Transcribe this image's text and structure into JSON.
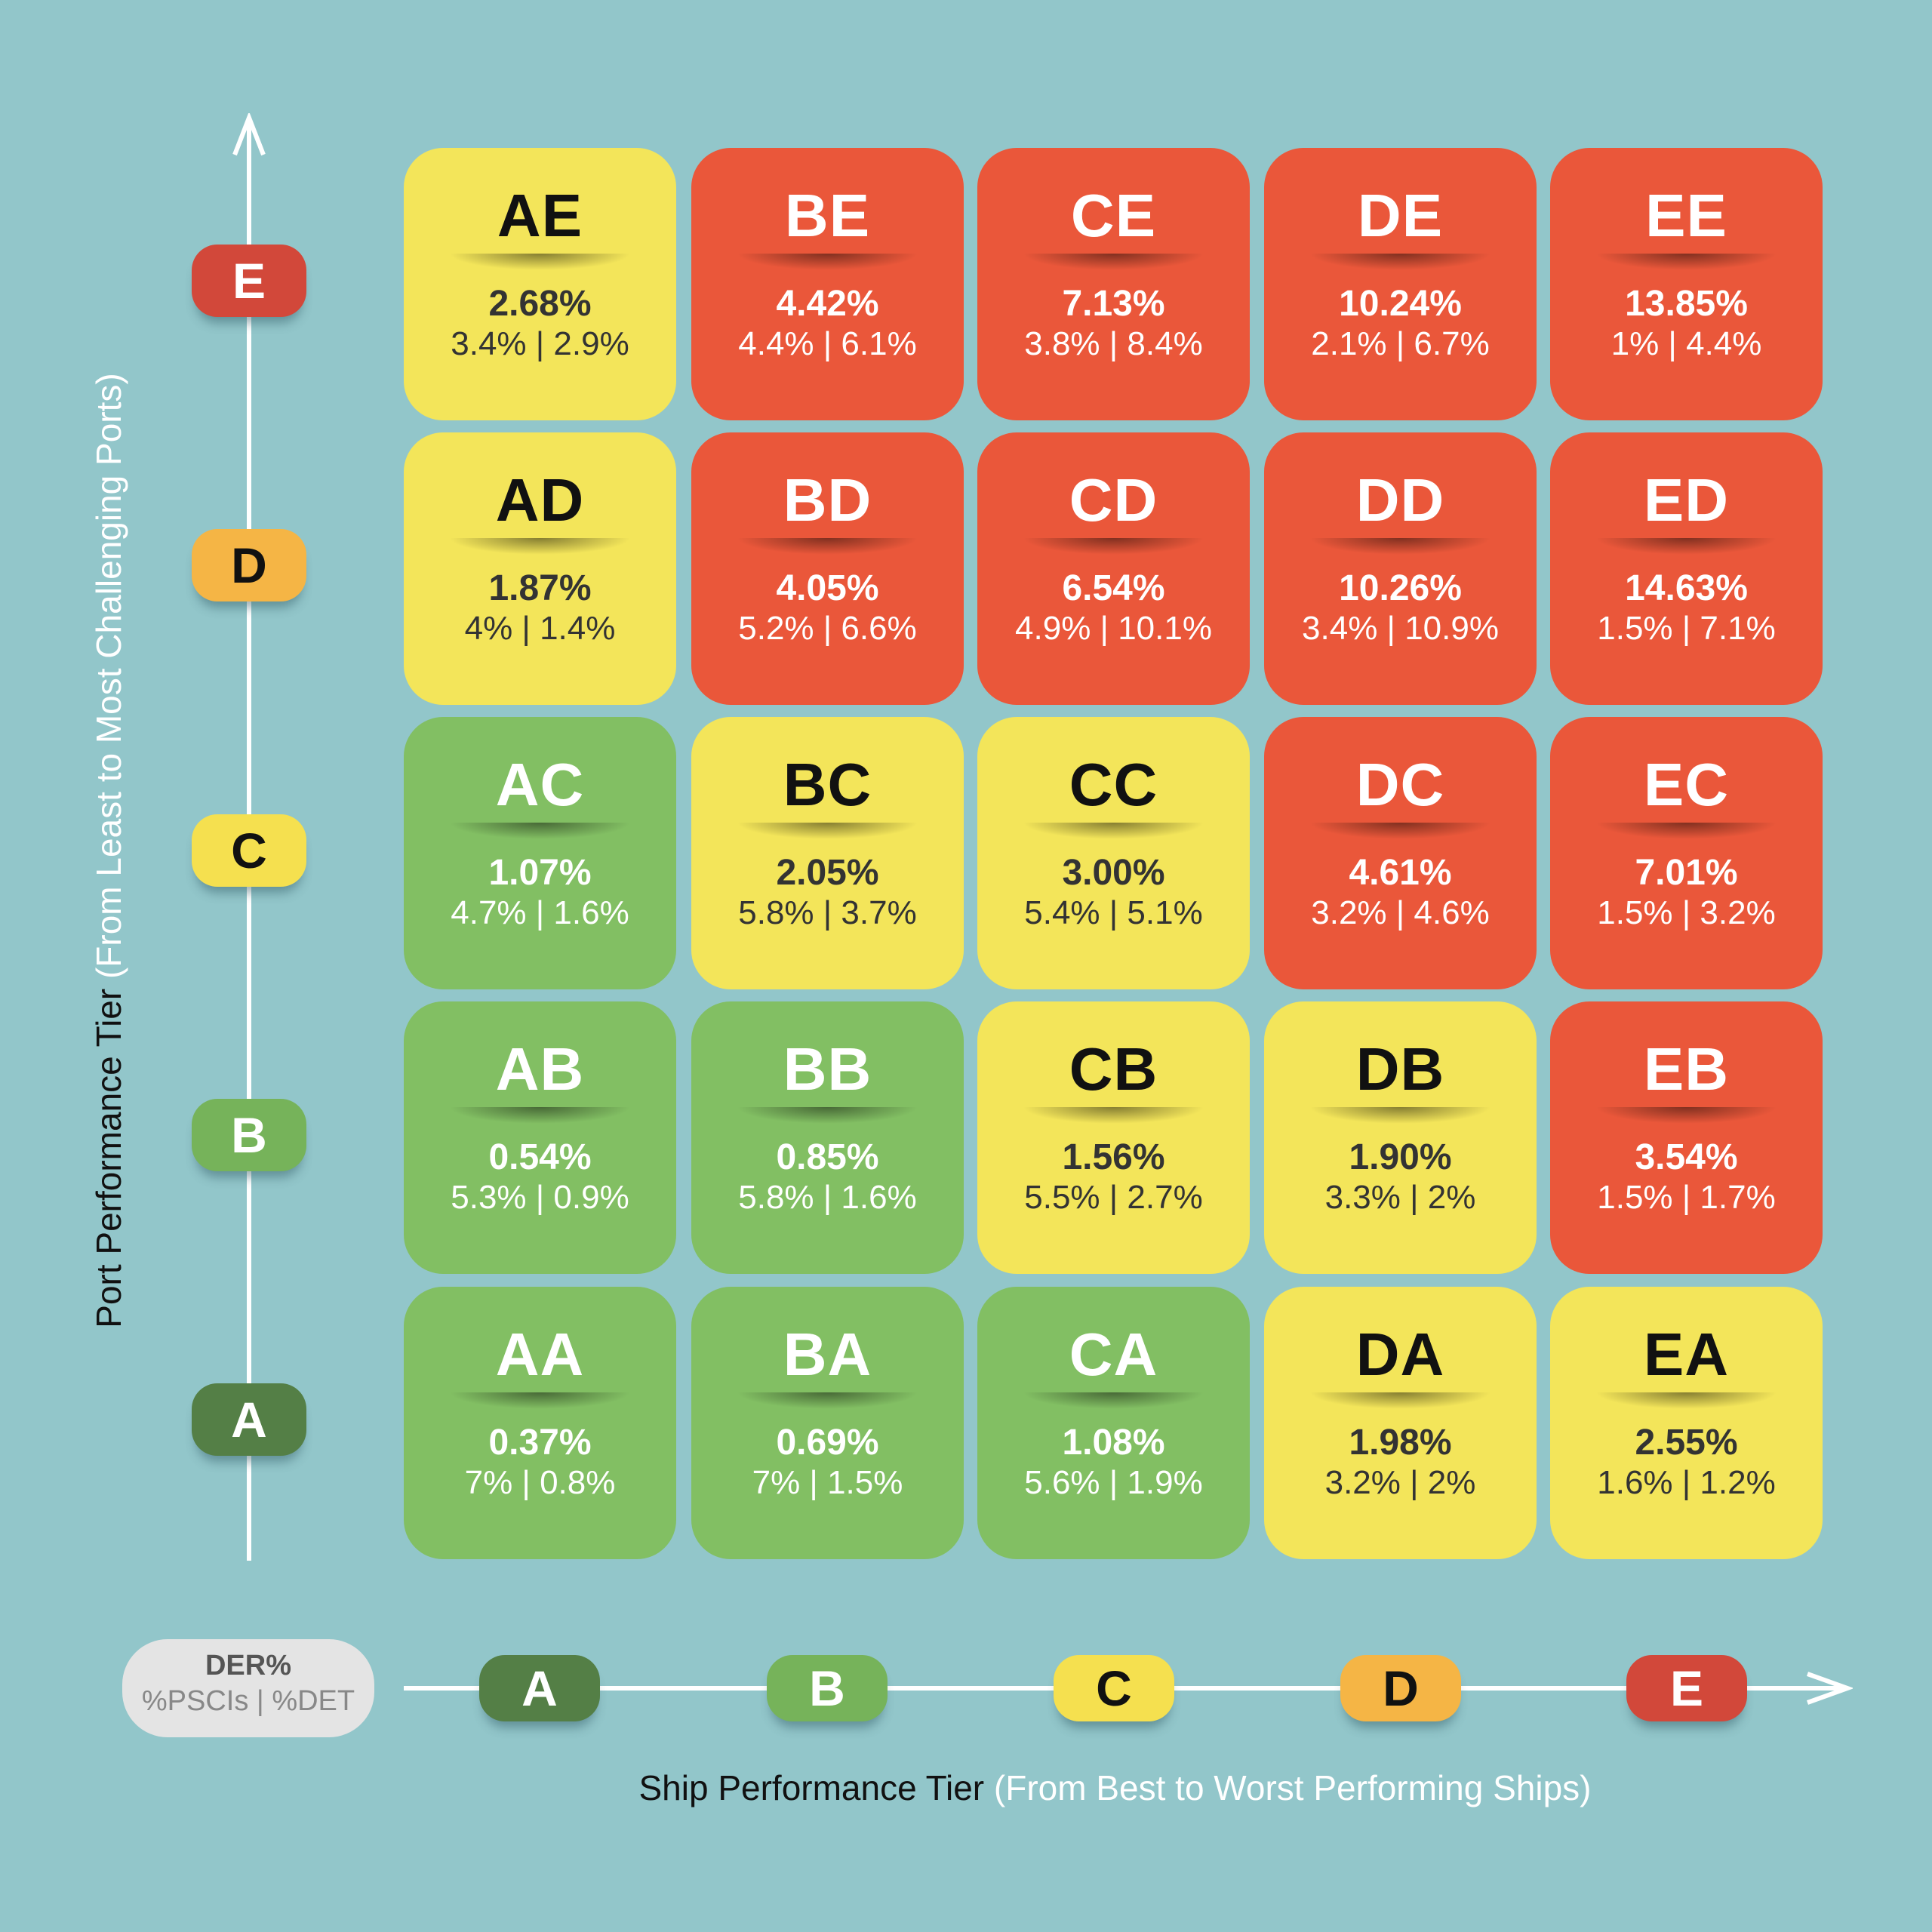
{
  "chart_data": {
    "type": "heatmap",
    "xlabel": "Ship Performance Tier",
    "xlabel_note": "(From Best to Worst Performing Ships)",
    "ylabel": "Port Performance Tier",
    "ylabel_note": "(From Least to Most Challenging Ports)",
    "x_categories": [
      "A",
      "B",
      "C",
      "D",
      "E"
    ],
    "y_categories": [
      "A",
      "B",
      "C",
      "D",
      "E"
    ],
    "legend": {
      "line1": "DER%",
      "line2": "%PSCIs | %DET"
    },
    "colors": {
      "background": "#92c6ca",
      "green": "#82bf63",
      "yellow": "#f3e55a",
      "red": "#ea573a"
    },
    "tier_colors": {
      "A": "#547f46",
      "B": "#76b35a",
      "C": "#f5e04f",
      "D": "#f5b545",
      "E": "#d2483a"
    },
    "rows": [
      {
        "port_tier": "E",
        "cells": [
          {
            "code": "AE",
            "der": "2.68%",
            "pscis": "3.4%",
            "det": "2.9%",
            "sub": "3.4% | 2.9%",
            "color": "yellow"
          },
          {
            "code": "BE",
            "der": "4.42%",
            "pscis": "4.4%",
            "det": "6.1%",
            "sub": "4.4% | 6.1%",
            "color": "red"
          },
          {
            "code": "CE",
            "der": "7.13%",
            "pscis": "3.8%",
            "det": "8.4%",
            "sub": "3.8% | 8.4%",
            "color": "red"
          },
          {
            "code": "DE",
            "der": "10.24%",
            "pscis": "2.1%",
            "det": "6.7%",
            "sub": "2.1% | 6.7%",
            "color": "red"
          },
          {
            "code": "EE",
            "der": "13.85%",
            "pscis": "1%",
            "det": "4.4%",
            "sub": "1% | 4.4%",
            "color": "red"
          }
        ]
      },
      {
        "port_tier": "D",
        "cells": [
          {
            "code": "AD",
            "der": "1.87%",
            "pscis": "4%",
            "det": "1.4%",
            "sub": "4% | 1.4%",
            "color": "yellow"
          },
          {
            "code": "BD",
            "der": "4.05%",
            "pscis": "5.2%",
            "det": "6.6%",
            "sub": "5.2% | 6.6%",
            "color": "red"
          },
          {
            "code": "CD",
            "der": "6.54%",
            "pscis": "4.9%",
            "det": "10.1%",
            "sub": "4.9% | 10.1%",
            "color": "red"
          },
          {
            "code": "DD",
            "der": "10.26%",
            "pscis": "3.4%",
            "det": "10.9%",
            "sub": "3.4% | 10.9%",
            "color": "red"
          },
          {
            "code": "ED",
            "der": "14.63%",
            "pscis": "1.5%",
            "det": "7.1%",
            "sub": "1.5% | 7.1%",
            "color": "red"
          }
        ]
      },
      {
        "port_tier": "C",
        "cells": [
          {
            "code": "AC",
            "der": "1.07%",
            "pscis": "4.7%",
            "det": "1.6%",
            "sub": "4.7% | 1.6%",
            "color": "green"
          },
          {
            "code": "BC",
            "der": "2.05%",
            "pscis": "5.8%",
            "det": "3.7%",
            "sub": "5.8% | 3.7%",
            "color": "yellow"
          },
          {
            "code": "CC",
            "der": "3.00%",
            "pscis": "5.4%",
            "det": "5.1%",
            "sub": "5.4% | 5.1%",
            "color": "yellow"
          },
          {
            "code": "DC",
            "der": "4.61%",
            "pscis": "3.2%",
            "det": "4.6%",
            "sub": "3.2% | 4.6%",
            "color": "red"
          },
          {
            "code": "EC",
            "der": "7.01%",
            "pscis": "1.5%",
            "det": "3.2%",
            "sub": "1.5% | 3.2%",
            "color": "red"
          }
        ]
      },
      {
        "port_tier": "B",
        "cells": [
          {
            "code": "AB",
            "der": "0.54%",
            "pscis": "5.3%",
            "det": "0.9%",
            "sub": "5.3% | 0.9%",
            "color": "green"
          },
          {
            "code": "BB",
            "der": "0.85%",
            "pscis": "5.8%",
            "det": "1.6%",
            "sub": "5.8% | 1.6%",
            "color": "green"
          },
          {
            "code": "CB",
            "der": "1.56%",
            "pscis": "5.5%",
            "det": "2.7%",
            "sub": "5.5% | 2.7%",
            "color": "yellow"
          },
          {
            "code": "DB",
            "der": "1.90%",
            "pscis": "3.3%",
            "det": "2%",
            "sub": "3.3% | 2%",
            "color": "yellow"
          },
          {
            "code": "EB",
            "der": "3.54%",
            "pscis": "1.5%",
            "det": "1.7%",
            "sub": "1.5% | 1.7%",
            "color": "red"
          }
        ]
      },
      {
        "port_tier": "A",
        "cells": [
          {
            "code": "AA",
            "der": "0.37%",
            "pscis": "7%",
            "det": "0.8%",
            "sub": "7% | 0.8%",
            "color": "green"
          },
          {
            "code": "BA",
            "der": "0.69%",
            "pscis": "7%",
            "det": "1.5%",
            "sub": "7% | 1.5%",
            "color": "green"
          },
          {
            "code": "CA",
            "der": "1.08%",
            "pscis": "5.6%",
            "det": "1.9%",
            "sub": "5.6% | 1.9%",
            "color": "green"
          },
          {
            "code": "DA",
            "der": "1.98%",
            "pscis": "3.2%",
            "det": "2%",
            "sub": "3.2% | 2%",
            "color": "yellow"
          },
          {
            "code": "EA",
            "der": "2.55%",
            "pscis": "1.6%",
            "det": "1.2%",
            "sub": "1.6% | 1.2%",
            "color": "yellow"
          }
        ]
      }
    ]
  }
}
